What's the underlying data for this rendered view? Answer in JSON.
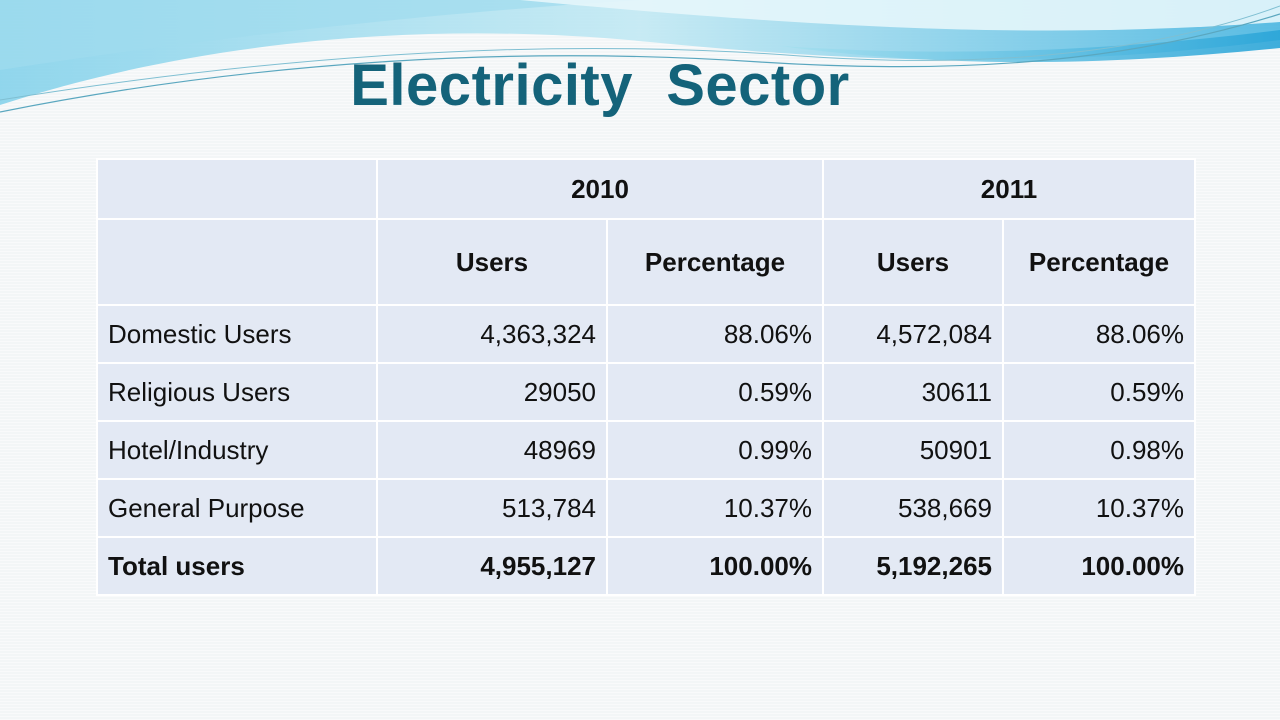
{
  "slide": {
    "title": "Electricity  Sector"
  },
  "table": {
    "years": [
      "2010",
      "2011"
    ],
    "subheaders": [
      "Users",
      "Percentage",
      "Users",
      "Percentage"
    ],
    "rows": [
      {
        "label": "Domestic Users",
        "cells": [
          "4,363,324",
          "88.06%",
          "4,572,084",
          "88.06%"
        ]
      },
      {
        "label": "Religious Users",
        "cells": [
          "29050",
          "0.59%",
          "30611",
          "0.59%"
        ]
      },
      {
        "label": "Hotel/Industry",
        "cells": [
          "48969",
          "0.99%",
          "50901",
          "0.98%"
        ]
      },
      {
        "label": "General Purpose",
        "cells": [
          "513,784",
          "10.37%",
          "538,669",
          "10.37%"
        ]
      }
    ],
    "total": {
      "label": "Total users",
      "cells": [
        "4,955,127",
        "100.00%",
        "5,192,265",
        "100.00%"
      ]
    }
  },
  "theme": {
    "title_color": "#14637a",
    "cell_fill": "#e3e9f4",
    "wave_color": "#3cb4dc"
  }
}
